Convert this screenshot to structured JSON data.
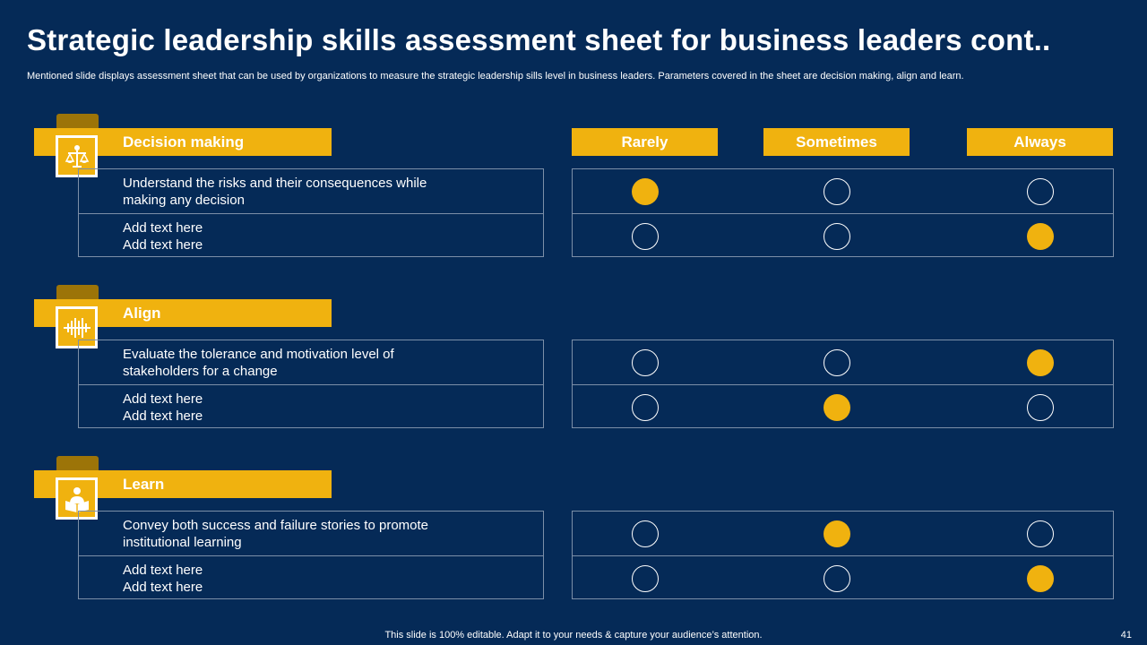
{
  "slide": {
    "title": "Strategic leadership skills assessment sheet for business leaders cont..",
    "subtitle": "Mentioned slide displays assessment sheet that can be used by organizations to measure the strategic leadership sills level in business leaders. Parameters covered in the sheet are decision making, align and learn.",
    "footer": "This slide is 100% editable. Adapt it to your needs & capture your audience’s attention.",
    "page_number": "41"
  },
  "columns": [
    "Rarely",
    "Sometimes",
    "Always"
  ],
  "sections": [
    {
      "label": "Decision making",
      "icon": "scales-icon",
      "rows": [
        {
          "text": "Understand the risks and their consequences while\nmaking any decision",
          "rating": "Rarely"
        },
        {
          "text": "Add text here\nAdd text here",
          "rating": "Always"
        }
      ]
    },
    {
      "label": "Align",
      "icon": "align-bars-icon",
      "rows": [
        {
          "text": "Evaluate the tolerance and motivation level of\nstakeholders for a change",
          "rating": "Always"
        },
        {
          "text": "Add text here\nAdd text here",
          "rating": "Sometimes"
        }
      ]
    },
    {
      "label": "Learn",
      "icon": "reader-book-icon",
      "rows": [
        {
          "text": "Convey both success and failure stories to promote\ninstitutional learning",
          "rating": "Sometimes"
        },
        {
          "text": "Add text here\nAdd text here",
          "rating": "Always"
        }
      ]
    }
  ],
  "colors": {
    "background": "#052a57",
    "accent": "#f0b20f",
    "tab": "#9c7408",
    "text": "#ffffff"
  }
}
